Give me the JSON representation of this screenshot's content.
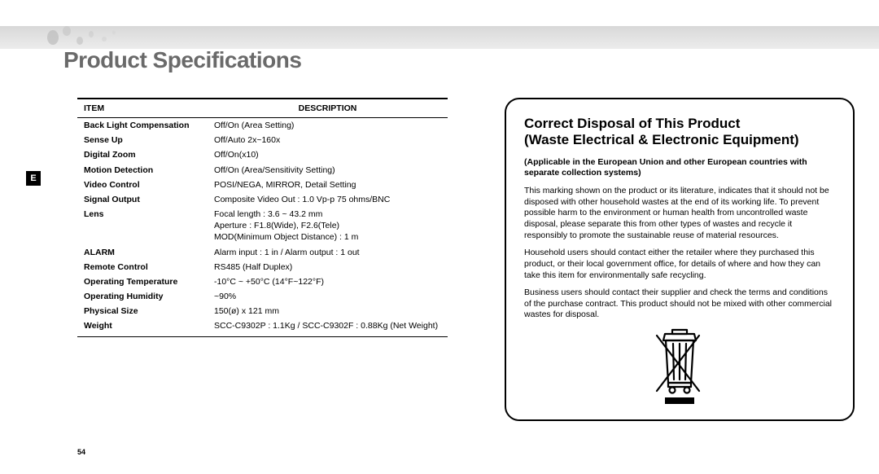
{
  "title": "Product Specifications",
  "langTab": "E",
  "pageNumber": "54",
  "table": {
    "headers": [
      "ITEM",
      "DESCRIPTION"
    ],
    "rows": [
      {
        "item": "Back Light Compensation",
        "desc": "Off/On (Area Setting)"
      },
      {
        "item": "Sense Up",
        "desc": "Off/Auto 2x~160x"
      },
      {
        "item": "Digital Zoom",
        "desc": "Off/On(x10)"
      },
      {
        "item": "Motion Detection",
        "desc": "Off/On (Area/Sensitivity Setting)"
      },
      {
        "item": "Video Control",
        "desc": "POSI/NEGA, MIRROR, Detail Setting"
      },
      {
        "item": "Signal Output",
        "desc": "Composite Video Out : 1.0 Vp-p 75 ohms/BNC"
      },
      {
        "item": "Lens",
        "desc": "Focal length : 3.6 ~ 43.2 mm\nAperture : F1.8(Wide), F2.6(Tele)\nMOD(Minimum Object Distance) : 1 m"
      },
      {
        "item": "ALARM",
        "desc": "Alarm input : 1 in / Alarm output : 1 out"
      },
      {
        "item": "Remote Control",
        "desc": "RS485 (Half Duplex)"
      },
      {
        "item": "Operating Temperature",
        "desc": "-10°C ~ +50°C (14°F~122°F)"
      },
      {
        "item": "Operating Humidity",
        "desc": "~90%"
      },
      {
        "item": "Physical Size",
        "desc": "150(ø) x 121 mm"
      },
      {
        "item": "Weight",
        "desc": "SCC-C9302P : 1.1Kg / SCC-C9302F : 0.88Kg (Net Weight)"
      }
    ]
  },
  "disposal": {
    "title1": "Correct Disposal of This Product",
    "title2": "(Waste Electrical & Electronic Equipment)",
    "sub": "(Applicable in the European Union and other European countries with separate collection systems)",
    "p1": "This marking shown on the product or its literature, indicates that it should not be disposed with other household wastes at the end of its working life. To prevent possible harm to the environment or human health from uncontrolled waste disposal, please separate this from other types of wastes and recycle it responsibly to promote the sustainable reuse of material resources.",
    "p2": "Household users should contact either the retailer where they purchased this product, or their local government office, for details of where and how they can take this item for environmentally safe recycling.",
    "p3": "Business users should contact their supplier and check the terms and conditions of the purchase contract. This product should not be mixed with other commercial wastes for disposal."
  }
}
